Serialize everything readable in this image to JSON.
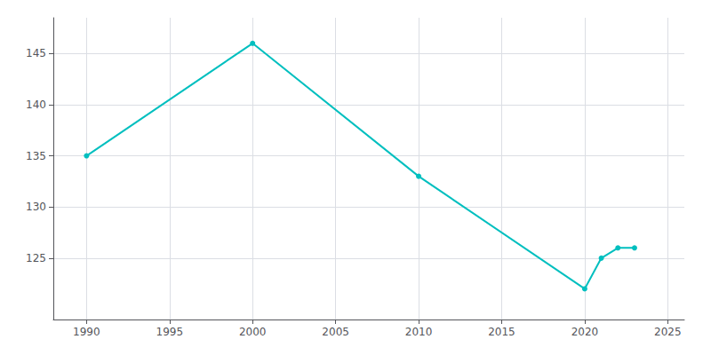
{
  "chart_data": {
    "type": "line",
    "x": [
      1990,
      2000,
      2010,
      2020,
      2021,
      2022,
      2023
    ],
    "values": [
      135,
      146,
      133,
      122,
      125,
      126,
      126
    ],
    "color": "#00BFBF",
    "marker": "o",
    "xlim": [
      1988,
      2026
    ],
    "ylim": [
      119,
      148.5
    ],
    "xticks": [
      1990,
      1995,
      2000,
      2005,
      2010,
      2015,
      2020,
      2025
    ],
    "yticks": [
      125,
      130,
      135,
      140,
      145
    ],
    "grid": true
  }
}
